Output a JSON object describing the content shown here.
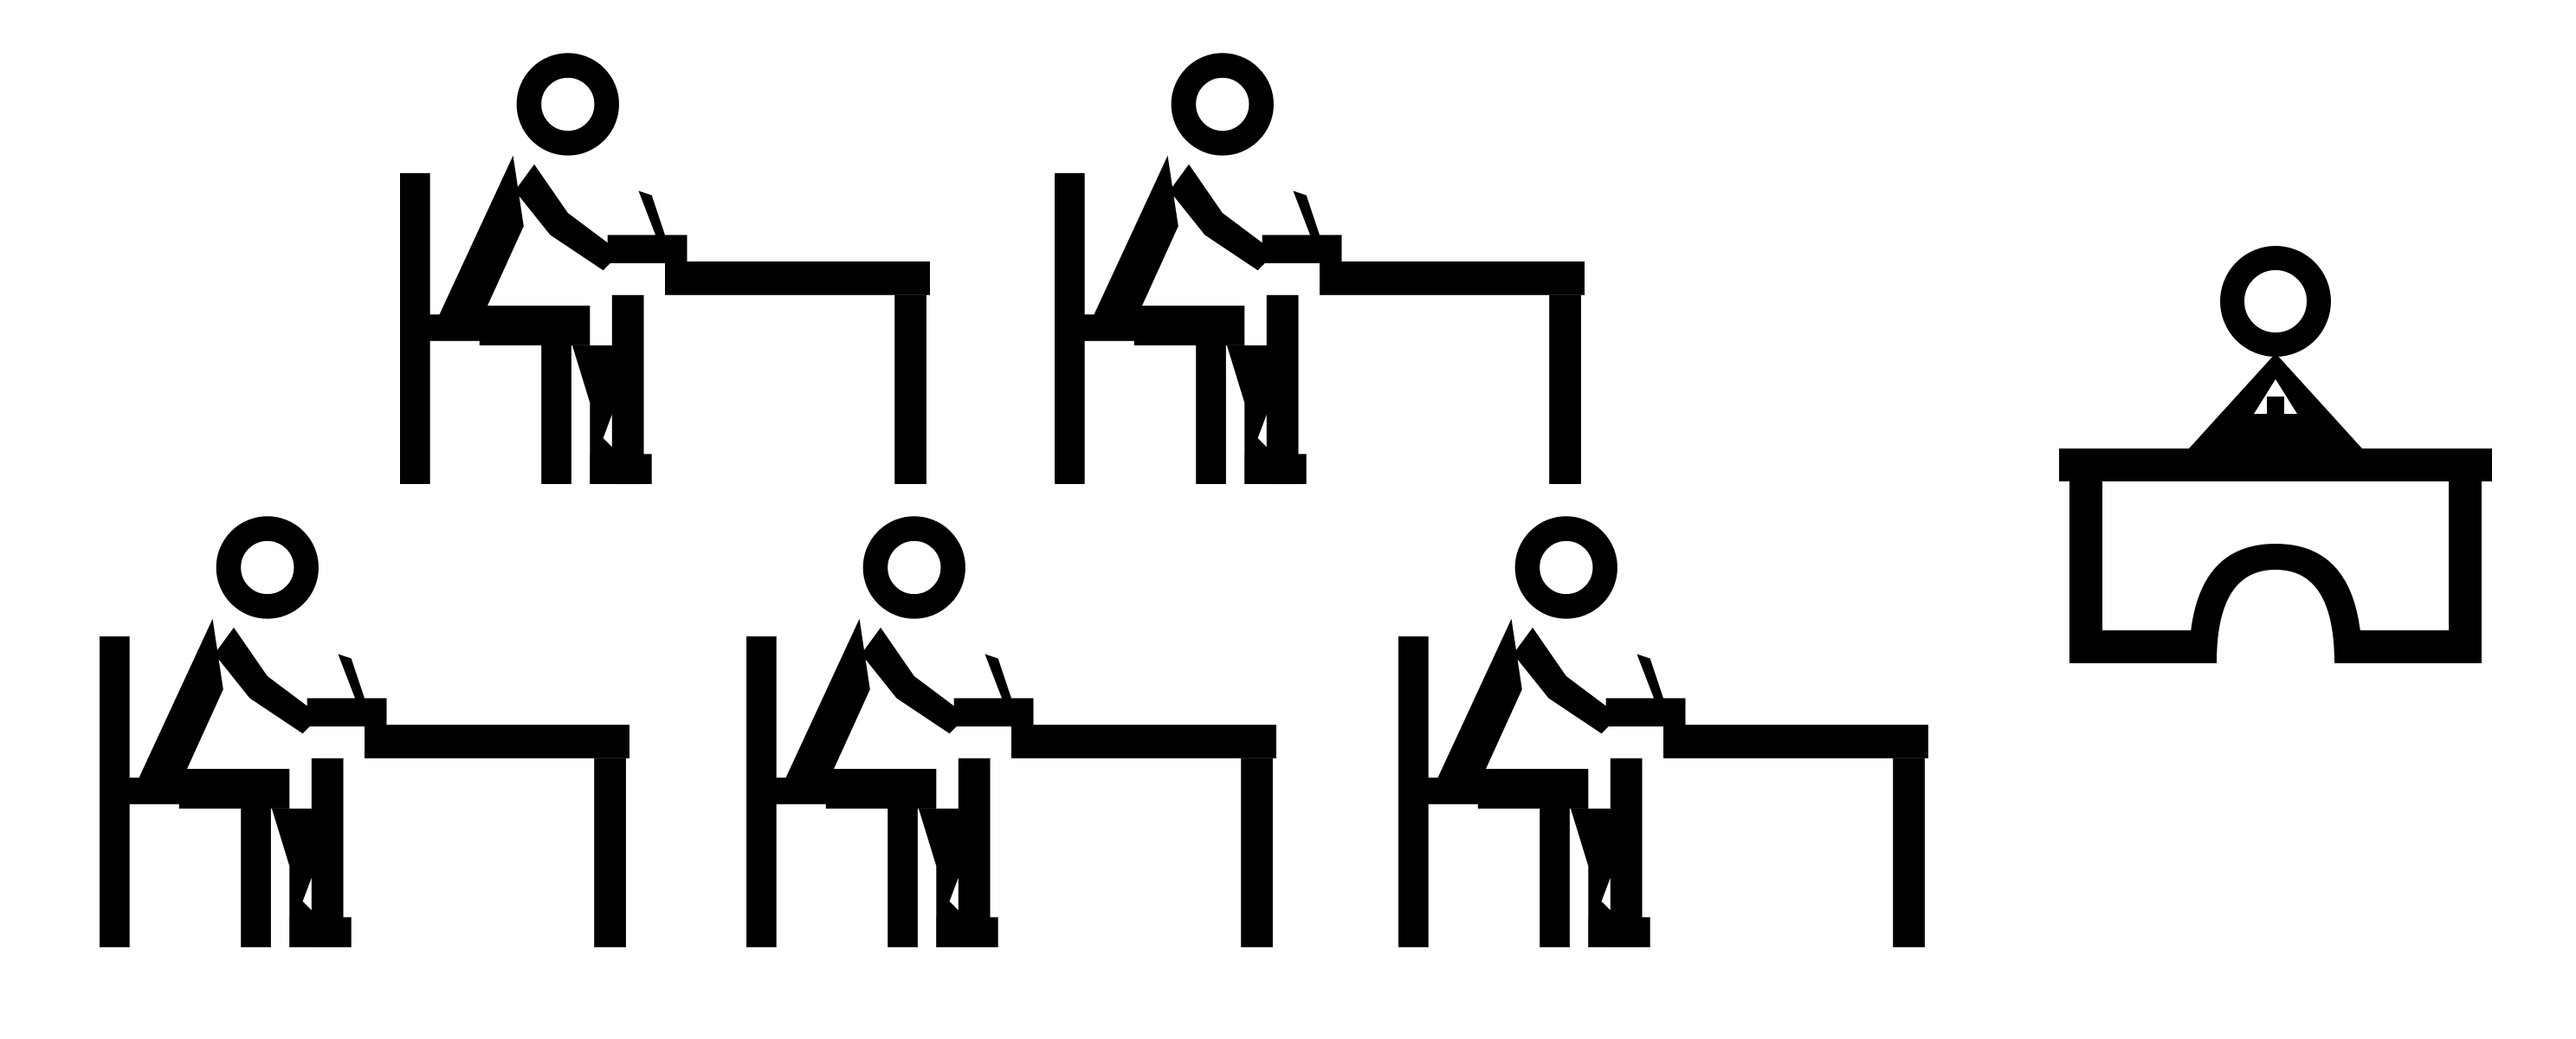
{
  "scene": {
    "description_name": "classroom-pictogram",
    "colors": {
      "ink": "#000000",
      "background": "#ffffff"
    },
    "icons": {
      "student": "student-at-desk-icon",
      "teacher": "teacher-at-desk-icon"
    },
    "student_count": 5,
    "teacher_count": 1
  }
}
